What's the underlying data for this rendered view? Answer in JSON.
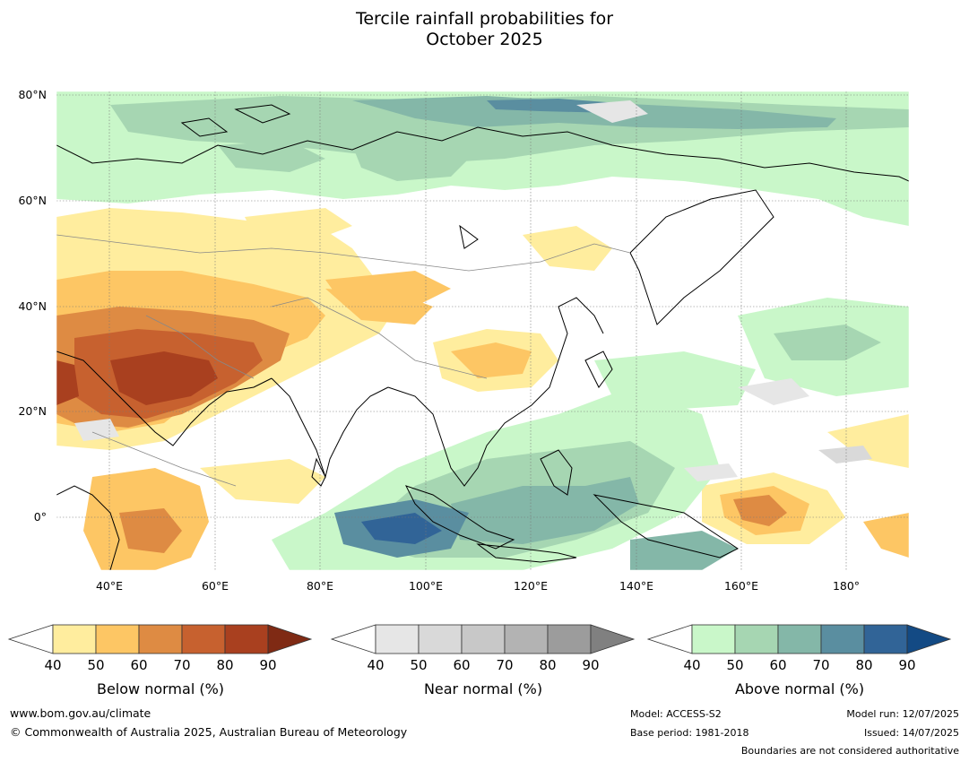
{
  "title_line1": "Tercile rainfall probabilities for",
  "title_line2": "October 2025",
  "map": {
    "lat_labels": [
      "80°N",
      "60°N",
      "40°N",
      "20°N",
      "0°"
    ],
    "lon_labels": [
      "40°E",
      "60°E",
      "80°E",
      "100°E",
      "120°E",
      "140°E",
      "160°E",
      "180°"
    ]
  },
  "legends": [
    {
      "label": "Below normal (%)",
      "ticks": [
        "40",
        "50",
        "60",
        "70",
        "80",
        "90"
      ],
      "colors": [
        "#ffed9e",
        "#fdc664",
        "#de8b43",
        "#c7612f",
        "#a9401f",
        "#7f2a14"
      ]
    },
    {
      "label": "Near normal (%)",
      "ticks": [
        "40",
        "50",
        "60",
        "70",
        "80",
        "90"
      ],
      "colors": [
        "#e6e6e6",
        "#d9d9d9",
        "#c8c8c8",
        "#b3b3b3",
        "#9c9c9c",
        "#808080"
      ]
    },
    {
      "label": "Above normal (%)",
      "ticks": [
        "40",
        "50",
        "60",
        "70",
        "80",
        "90"
      ],
      "colors": [
        "#c9f7c9",
        "#a6d6b2",
        "#84b7a8",
        "#5a8ea0",
        "#316497",
        "#134a84"
      ]
    }
  ],
  "footer": {
    "website": "www.bom.gov.au/climate",
    "copyright": "© Commonwealth of Australia 2025, Australian Bureau of Meteorology",
    "model": "Model: ACCESS-S2",
    "base_period": "Base period: 1981-2018",
    "model_run": "Model run: 12/07/2025",
    "issued": "Issued: 14/07/2025",
    "disclaimer": "Boundaries are not considered authoritative"
  }
}
